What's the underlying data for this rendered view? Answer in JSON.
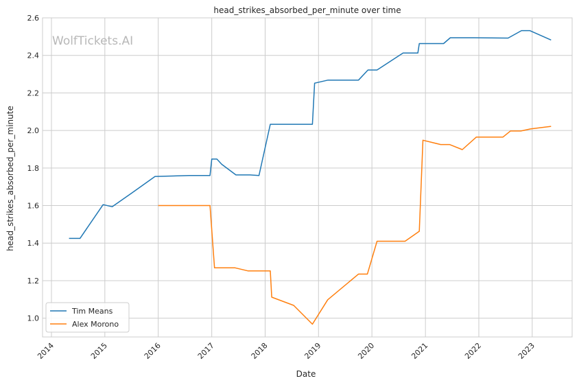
{
  "watermark": "WolfTickets.AI",
  "chart_data": {
    "type": "line",
    "title": "head_strikes_absorbed_per_minute over time",
    "xlabel": "Date",
    "ylabel": "head_strikes_absorbed_per_minute",
    "xlim": [
      "2013-11-01",
      "2023-10-01"
    ],
    "ylim": [
      0.9,
      2.6
    ],
    "x_ticks": [
      "2014",
      "2015",
      "2016",
      "2017",
      "2018",
      "2019",
      "2020",
      "2021",
      "2022",
      "2023"
    ],
    "y_ticks": [
      "1.0",
      "1.2",
      "1.4",
      "1.6",
      "1.8",
      "2.0",
      "2.2",
      "2.4",
      "2.6"
    ],
    "grid": true,
    "legend_position": "lower-left",
    "series": [
      {
        "name": "Tim Means",
        "color": "#1f77b4",
        "points": [
          [
            "2014-05-01",
            1.425
          ],
          [
            "2014-07-15",
            1.425
          ],
          [
            "2014-12-20",
            1.605
          ],
          [
            "2015-02-20",
            1.594
          ],
          [
            "2015-07-01",
            1.665
          ],
          [
            "2015-12-10",
            1.755
          ],
          [
            "2016-08-01",
            1.76
          ],
          [
            "2016-12-20",
            1.76
          ],
          [
            "2017-01-01",
            1.848
          ],
          [
            "2017-02-05",
            1.848
          ],
          [
            "2017-03-10",
            1.82
          ],
          [
            "2017-06-15",
            1.763
          ],
          [
            "2017-09-20",
            1.763
          ],
          [
            "2017-11-20",
            1.76
          ],
          [
            "2018-02-05",
            2.033
          ],
          [
            "2018-11-20",
            2.033
          ],
          [
            "2018-12-05",
            2.252
          ],
          [
            "2019-03-05",
            2.268
          ],
          [
            "2019-10-01",
            2.268
          ],
          [
            "2019-12-05",
            2.322
          ],
          [
            "2020-02-05",
            2.322
          ],
          [
            "2020-08-01",
            2.413
          ],
          [
            "2020-11-10",
            2.413
          ],
          [
            "2020-11-20",
            2.463
          ],
          [
            "2021-05-05",
            2.463
          ],
          [
            "2021-06-20",
            2.494
          ],
          [
            "2021-12-01",
            2.494
          ],
          [
            "2022-07-20",
            2.492
          ],
          [
            "2022-10-20",
            2.532
          ],
          [
            "2022-12-15",
            2.532
          ],
          [
            "2023-05-10",
            2.482
          ]
        ]
      },
      {
        "name": "Alex Morono",
        "color": "#ff7f0e",
        "points": [
          [
            "2016-01-01",
            1.6
          ],
          [
            "2016-12-20",
            1.6
          ],
          [
            "2017-01-20",
            1.268
          ],
          [
            "2017-06-10",
            1.268
          ],
          [
            "2017-09-05",
            1.252
          ],
          [
            "2018-02-05",
            1.252
          ],
          [
            "2018-02-15",
            1.112
          ],
          [
            "2018-07-15",
            1.068
          ],
          [
            "2018-11-20",
            0.968
          ],
          [
            "2019-03-05",
            1.098
          ],
          [
            "2019-10-01",
            1.235
          ],
          [
            "2019-12-01",
            1.235
          ],
          [
            "2020-02-05",
            1.41
          ],
          [
            "2020-08-15",
            1.41
          ],
          [
            "2020-11-20",
            1.463
          ],
          [
            "2020-12-15",
            1.948
          ],
          [
            "2021-04-15",
            1.925
          ],
          [
            "2021-06-15",
            1.925
          ],
          [
            "2021-09-10",
            1.898
          ],
          [
            "2021-12-15",
            1.965
          ],
          [
            "2022-06-15",
            1.965
          ],
          [
            "2022-08-05",
            1.997
          ],
          [
            "2022-10-15",
            1.997
          ],
          [
            "2022-12-20",
            2.008
          ],
          [
            "2023-05-10",
            2.022
          ]
        ]
      }
    ]
  }
}
